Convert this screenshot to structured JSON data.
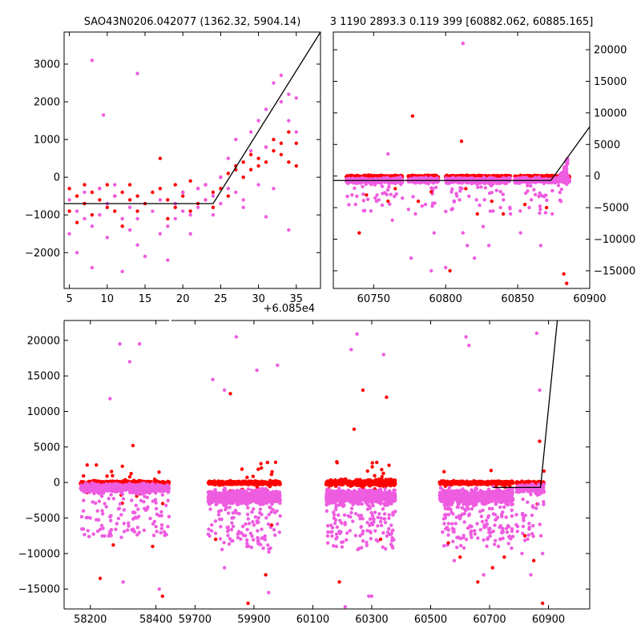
{
  "colors": {
    "red": "#ff0000",
    "magenta": "#ee5ce0",
    "line": "#000000"
  },
  "chart_data": [
    {
      "type": "scatter",
      "panel": "top-left",
      "title": "SAO43N0206.042077 (1362.32, 5904.14)",
      "x_offset_label": "+6.085e4",
      "xlim": [
        4.3,
        38.2
      ],
      "ylim": [
        -2950,
        3850
      ],
      "xticks": [
        5,
        10,
        15,
        20,
        25,
        30,
        35
      ],
      "xtick_labels": [
        "5",
        "10",
        "15",
        "20",
        "25",
        "30",
        "35"
      ],
      "yticks": [
        -2000,
        -1000,
        0,
        1000,
        2000,
        3000
      ],
      "ytick_labels": [
        "−2000",
        "−1000",
        "0",
        "1000",
        "2000",
        "3000"
      ],
      "model_line": {
        "x": [
          4.3,
          24,
          38.2
        ],
        "y": [
          -700,
          -700,
          3850
        ]
      },
      "series": [
        {
          "color": "red",
          "x": [
            5,
            5,
            6,
            6,
            7,
            7,
            8,
            8,
            9,
            9,
            10,
            10,
            11,
            11,
            12,
            12,
            13,
            13,
            14,
            14,
            15,
            16,
            17,
            17,
            18,
            18,
            19,
            19,
            20,
            20,
            21,
            21,
            22,
            22,
            23,
            23,
            24,
            24,
            25,
            25,
            26,
            26,
            27,
            27,
            28,
            28,
            29,
            29,
            30,
            30,
            31,
            31,
            32,
            32,
            33,
            33,
            34,
            34,
            35,
            35
          ],
          "y": [
            -300,
            -900,
            -500,
            -1200,
            -200,
            -700,
            -400,
            -1000,
            -600,
            -300,
            -800,
            -200,
            -500,
            -900,
            -400,
            -1300,
            -600,
            -200,
            -900,
            -500,
            -700,
            -400,
            500,
            -300,
            -600,
            -1100,
            -200,
            -800,
            -500,
            -400,
            -900,
            -100,
            -700,
            -300,
            -200,
            -600,
            -800,
            -400,
            0,
            -300,
            100,
            -500,
            200,
            300,
            400,
            0,
            600,
            200,
            500,
            300,
            800,
            400,
            700,
            1000,
            900,
            600,
            1200,
            400,
            900,
            300
          ]
        },
        {
          "color": "magenta",
          "x": [
            5,
            5,
            6,
            6,
            7,
            7,
            8,
            8,
            9,
            9,
            10,
            10,
            11,
            11,
            12,
            12,
            13,
            13,
            14,
            14,
            15,
            16,
            17,
            17,
            18,
            18,
            19,
            19,
            20,
            20,
            21,
            21,
            22,
            22,
            23,
            23,
            24,
            24,
            25,
            25,
            26,
            26,
            27,
            27,
            28,
            28,
            29,
            29,
            30,
            30,
            31,
            31,
            32,
            32,
            33,
            33,
            34,
            34,
            35,
            35,
            8,
            14,
            9.5,
            31,
            34
          ],
          "y": [
            -600,
            -1500,
            -900,
            -2000,
            -400,
            -1100,
            -1300,
            -2400,
            -300,
            -1000,
            -700,
            -1600,
            -200,
            -500,
            -1100,
            -2500,
            -800,
            -1400,
            -1800,
            -1100,
            -2100,
            -900,
            -600,
            -1500,
            -1300,
            -2200,
            -700,
            -1100,
            -400,
            -900,
            -1000,
            -1500,
            -300,
            -800,
            -200,
            -600,
            -500,
            -1000,
            0,
            -700,
            500,
            -300,
            1000,
            -400,
            -600,
            -800,
            1200,
            700,
            1500,
            -200,
            800,
            1800,
            2500,
            -300,
            2000,
            2700,
            1500,
            2200,
            2100,
            1200,
            3100,
            2750,
            1650,
            -1050,
            -1400
          ]
        }
      ]
    },
    {
      "type": "scatter",
      "panel": "top-right",
      "title": "3 1190 2893.3 0.119 399 [60882.062, 60885.165]",
      "xlim": [
        60722,
        60900
      ],
      "ylim": [
        -17800,
        22800
      ],
      "xticks": [
        60750,
        60800,
        60850,
        60900
      ],
      "xtick_labels": [
        "60750",
        "60800",
        "60850",
        "60900"
      ],
      "yticks": [
        -15000,
        -10000,
        -5000,
        0,
        5000,
        10000,
        15000,
        20000
      ],
      "ytick_labels": [
        "−15000",
        "−10000",
        "−5000",
        "0",
        "5000",
        "10000",
        "15000",
        "20000"
      ],
      "model_line": {
        "x": [
          60722,
          60873,
          60900
        ],
        "y": [
          -700,
          -700,
          7800
        ]
      },
      "bands": [
        [
          60731,
          60770
        ],
        [
          60774,
          60795
        ],
        [
          60800,
          60845
        ],
        [
          60848,
          60886
        ]
      ],
      "series": [
        {
          "color": "red",
          "x": [
            60740,
            60745,
            60760,
            60765,
            60777,
            60781,
            60790,
            60803,
            60811,
            60814,
            60822,
            60832,
            60840,
            60855,
            60870,
            60882,
            60884
          ],
          "y": [
            -9000,
            -3000,
            -4000,
            -2000,
            9500,
            -4000,
            -2500,
            -15000,
            5500,
            -2000,
            -6000,
            -4000,
            -6000,
            -4500,
            -5000,
            -15500,
            -17000
          ]
        },
        {
          "color": "magenta",
          "x": [
            60735,
            60743,
            60752,
            60763,
            60770,
            60776,
            60779,
            60786,
            60792,
            60800,
            60806,
            60812,
            60815,
            60820,
            60826,
            60830,
            60838,
            60845,
            60852,
            60858,
            60866,
            60874,
            60880,
            60884,
            60760,
            60812,
            60790
          ],
          "y": [
            -3000,
            -5500,
            -4000,
            -7000,
            -3500,
            -13000,
            -6000,
            -4500,
            -9000,
            -14500,
            -4000,
            21000,
            -11000,
            -13000,
            -8000,
            -11000,
            -5000,
            -6000,
            -9000,
            -5000,
            -11000,
            -6000,
            -4000,
            2500,
            3500,
            -9000,
            -15000
          ]
        }
      ]
    },
    {
      "type": "scatter",
      "panel": "bottom",
      "xlim": [
        58120,
        61040
      ],
      "ylim": [
        -17800,
        22800
      ],
      "xticks": [
        58200,
        58400,
        59700,
        59900,
        60100,
        60300,
        60500,
        60700,
        60900
      ],
      "xtick_labels": [
        "58200",
        "58400",
        "59700",
        "59900",
        "60100",
        "60300",
        "60500",
        "60700",
        "60900"
      ],
      "yticks": [
        -15000,
        -10000,
        -5000,
        0,
        5000,
        10000,
        15000,
        20000
      ],
      "ytick_labels": [
        "−15000",
        "−10000",
        "−5000",
        "0",
        "5000",
        "10000",
        "15000",
        "20000"
      ],
      "model_line": {
        "x": [
          60712,
          60873,
          60930
        ],
        "y": [
          -700,
          -700,
          22800
        ]
      },
      "seasons": [
        [
          58170,
          58440
        ],
        [
          59745,
          59990
        ],
        [
          60145,
          60380
        ],
        [
          60530,
          60780
        ],
        [
          60790,
          60885
        ]
      ],
      "series": [
        {
          "color": "red",
          "x": [
            58230,
            58270,
            58330,
            58390,
            58420,
            59770,
            59820,
            59880,
            59940,
            59960,
            60190,
            60240,
            60270,
            60330,
            60350,
            60560,
            60600,
            60660,
            60710,
            60750,
            60820,
            60850,
            60870,
            60880
          ],
          "y": [
            -13500,
            -8800,
            5200,
            -9000,
            -16000,
            -8000,
            12500,
            -17000,
            -13000,
            -6000,
            -14000,
            7500,
            13000,
            -8000,
            12000,
            -8500,
            -10500,
            -14000,
            -12000,
            -10500,
            -7500,
            -11000,
            5800,
            -17000
          ]
        },
        {
          "color": "magenta",
          "x": [
            58200,
            58260,
            58300,
            58350,
            58410,
            59760,
            59800,
            59840,
            59900,
            59950,
            59980,
            60180,
            60210,
            60250,
            60290,
            60340,
            60370,
            60550,
            60580,
            60630,
            60680,
            60730,
            60760,
            60810,
            60840,
            60860,
            60880,
            58290,
            58320,
            59800,
            59910,
            60230,
            60300,
            60620,
            60870
          ],
          "y": [
            -5000,
            11800,
            -14000,
            19500,
            -15000,
            14500,
            -12000,
            20500,
            -6000,
            -15500,
            16500,
            -9000,
            -17500,
            20900,
            -16000,
            18000,
            -9000,
            -5000,
            -11000,
            19300,
            -13000,
            -9000,
            -7000,
            -10000,
            -13000,
            21000,
            -10000,
            19500,
            17000,
            13000,
            15800,
            18700,
            -16000,
            20500,
            13000
          ]
        }
      ]
    }
  ]
}
